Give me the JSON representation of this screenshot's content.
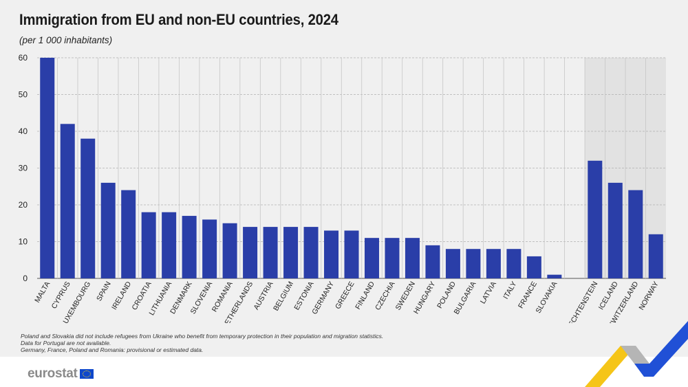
{
  "title": "Immigration from EU and non-EU countries, 2024",
  "subtitle": "(per 1 000 inhabitants)",
  "notes": [
    "Poland and Slovakia did not include refugees from Ukraine who benefit from temporary protection in their population and migration statistics.",
    "Data for Portugal are not available.",
    "Germany, France, Poland and Romania: provisional or estimated data."
  ],
  "logo_text": "eurostat",
  "colors": {
    "bar": "#2a3ea8",
    "background": "#f0f0f0",
    "non_eu_band": "#e2e2e2",
    "grid": "#b0b0b0",
    "deco_yellow": "#f5c518",
    "deco_blue": "#2050d6",
    "deco_grey": "#b5b5b5"
  },
  "chart_data": {
    "type": "bar",
    "title": "Immigration from EU and non-EU countries, 2024",
    "subtitle": "(per 1 000 inhabitants)",
    "categories": [
      "MALTA",
      "CYPRUS",
      "LUXEMBOURG",
      "SPAIN",
      "IRELAND",
      "CROATIA",
      "LITHUANIA",
      "DENMARK",
      "SLOVENIA",
      "ROMANIA",
      "NETHERLANDS",
      "AUSTRIA",
      "BELGIUM",
      "ESTONIA",
      "GERMANY",
      "GREECE",
      "FINLAND",
      "CZECHIA",
      "SWEDEN",
      "HUNGARY",
      "POLAND",
      "BULGARIA",
      "LATVIA",
      "ITALY",
      "FRANCE",
      "SLOVAKIA",
      "",
      "LIECHTENSTEIN",
      "ICELAND",
      "SWITZERLAND",
      "NORWAY"
    ],
    "values": [
      60,
      42,
      38,
      26,
      24,
      18,
      18,
      17,
      16,
      15,
      14,
      14,
      14,
      14,
      13,
      13,
      11,
      11,
      11,
      9,
      8,
      8,
      8,
      8,
      6,
      1,
      null,
      32,
      26,
      24,
      12
    ],
    "non_eu_categories": [
      "LIECHTENSTEIN",
      "ICELAND",
      "SWITZERLAND",
      "NORWAY"
    ],
    "ylim": [
      0,
      60
    ],
    "yticks": [
      0,
      10,
      20,
      30,
      40,
      50,
      60
    ],
    "xlabel": "",
    "ylabel": "",
    "grid": true
  }
}
